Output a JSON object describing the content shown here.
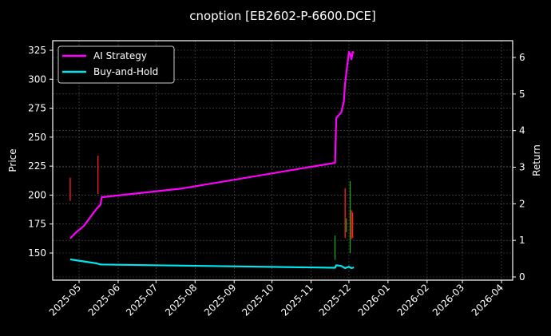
{
  "chart_data": {
    "type": "line",
    "title": "cnoption [EB2602-P-6600.DCE]",
    "xlabel": "",
    "ylabel": "Price",
    "y2label": "Return",
    "x_ticks": [
      "2025-05",
      "2025-06",
      "2025-07",
      "2025-08",
      "2025-09",
      "2025-10",
      "2025-11",
      "2025-12",
      "2026-01",
      "2026-02",
      "2026-03",
      "2026-04"
    ],
    "y_ticks": [
      150,
      175,
      200,
      225,
      250,
      275,
      300,
      325
    ],
    "y2_ticks": [
      0,
      1,
      2,
      3,
      4,
      5,
      6
    ],
    "ylim": [
      128,
      333
    ],
    "y2lim": [
      -0.05,
      6.4
    ],
    "grid": true,
    "legend_position": "upper left",
    "series": [
      {
        "name": "AI Strategy",
        "axis": "right",
        "color": "#ff00ff",
        "x": [
          "2025-04-24",
          "2025-04-28",
          "2025-05-05",
          "2025-05-15",
          "2025-05-18",
          "2025-05-19",
          "2025-07-22",
          "2025-11-20",
          "2025-11-21",
          "2025-11-25",
          "2025-11-27",
          "2025-11-28",
          "2025-12-01",
          "2025-12-02",
          "2025-12-03",
          "2025-12-04",
          "2025-12-05"
        ],
        "values": [
          1.05,
          1.2,
          1.4,
          1.87,
          1.97,
          2.18,
          2.42,
          3.12,
          4.35,
          4.5,
          4.8,
          5.3,
          6.15,
          6.1,
          5.95,
          6.15,
          6.12
        ]
      },
      {
        "name": "Buy-and-Hold",
        "axis": "right",
        "color": "#00e5ee",
        "x": [
          "2025-04-24",
          "2025-05-15",
          "2025-05-18",
          "2025-11-20",
          "2025-11-21",
          "2025-11-25",
          "2025-11-28",
          "2025-12-01",
          "2025-12-03",
          "2025-12-05"
        ],
        "values": [
          0.48,
          0.37,
          0.34,
          0.25,
          0.32,
          0.3,
          0.24,
          0.28,
          0.24,
          0.26
        ]
      }
    ],
    "candles": [
      {
        "x": "2025-04-24",
        "high": 215,
        "low": 195,
        "color": "#ff2020"
      },
      {
        "x": "2025-05-16",
        "high": 234,
        "low": 201,
        "color": "#ff2020"
      },
      {
        "x": "2025-11-20",
        "high": 165,
        "low": 144,
        "color": "#1fa31f"
      },
      {
        "x": "2025-11-28",
        "high": 206,
        "low": 163,
        "color": "#ff2020"
      },
      {
        "x": "2025-11-29",
        "high": 180,
        "low": 168,
        "color": "#1fa31f"
      },
      {
        "x": "2025-12-02",
        "high": 212,
        "low": 150,
        "color": "#1fa31f"
      },
      {
        "x": "2025-12-03",
        "high": 187,
        "low": 162,
        "color": "#ff2020"
      },
      {
        "x": "2025-12-04",
        "high": 185,
        "low": 163,
        "color": "#ff2020"
      }
    ]
  },
  "labels": {
    "title": "cnoption [EB2602-P-6600.DCE]",
    "ylabel": "Price",
    "y2label": "Return",
    "legend": [
      "AI Strategy",
      "Buy-and-Hold"
    ]
  },
  "colors": {
    "background": "#000000",
    "ai_strategy": "#ff00ff",
    "buy_and_hold": "#00e5ee",
    "candle_up": "#1fa31f",
    "candle_down": "#ff2020",
    "grid": "#555555",
    "axes": "#ffffff"
  }
}
